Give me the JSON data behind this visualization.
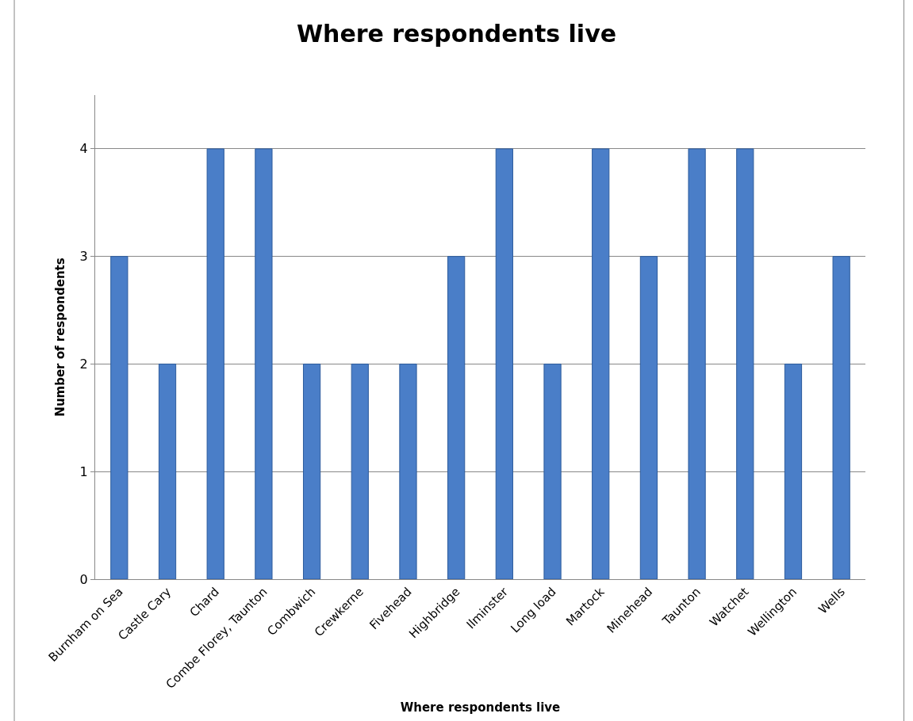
{
  "chart_data": {
    "type": "bar",
    "title": "Where respondents live",
    "xlabel": "Where respondents live",
    "ylabel": "Number of respondents",
    "categories": [
      "Burnham on Sea",
      "Castle Cary",
      "Chard",
      "Combe Florey, Taunton",
      "Combwich",
      "Crewkerne",
      "Fivehead",
      "Highbridge",
      "Ilminster",
      "Long load",
      "Martock",
      "Minehead",
      "Taunton",
      "Watchet",
      "Wellington",
      "Wells"
    ],
    "values": [
      3,
      2,
      4,
      4,
      2,
      2,
      2,
      3,
      4,
      2,
      4,
      3,
      4,
      4,
      2,
      3
    ],
    "color": "#4a7ec8",
    "ylim": [
      0,
      4.5
    ],
    "yticks": [
      0,
      1,
      2,
      3,
      4
    ],
    "grid": "y"
  }
}
